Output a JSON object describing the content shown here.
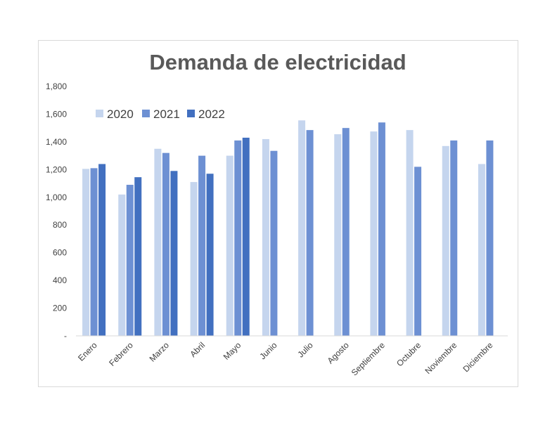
{
  "chart_data": {
    "type": "bar",
    "title": "Demanda de electricidad",
    "xlabel": "",
    "ylabel": "",
    "categories": [
      "Enero",
      "Febrero",
      "Marzo",
      "Abril",
      "Mayo",
      "Junio",
      "Julio",
      "Agosto",
      "Septiembre",
      "Octubre",
      "Noviembre",
      "Diciembre"
    ],
    "series": [
      {
        "name": "2020",
        "color": "#c5d5ee",
        "values": [
          1205,
          1020,
          1350,
          1110,
          1300,
          1420,
          1555,
          1455,
          1475,
          1485,
          1370,
          1240
        ]
      },
      {
        "name": "2021",
        "color": "#6d90d3",
        "values": [
          1210,
          1090,
          1320,
          1300,
          1410,
          1335,
          1485,
          1500,
          1540,
          1220,
          1410,
          1410
        ]
      },
      {
        "name": "2022",
        "color": "#4270c0",
        "values": [
          1240,
          1145,
          1190,
          1170,
          1430,
          null,
          null,
          null,
          null,
          null,
          null,
          null
        ]
      }
    ],
    "ylim": [
      0,
      1800
    ],
    "yticks": [
      0,
      200,
      400,
      600,
      800,
      1000,
      1200,
      1400,
      1600,
      1800
    ],
    "ytick_labels": [
      "-",
      "200",
      "400",
      "600",
      "800",
      "1,000",
      "1,200",
      "1,400",
      "1,600",
      "1,800"
    ],
    "grid": false,
    "legend": "top-left"
  }
}
